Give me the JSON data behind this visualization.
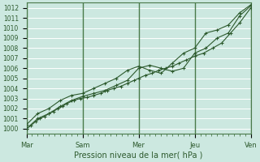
{
  "background_color": "#cce8e0",
  "plot_bg_color": "#cce8e0",
  "grid_color": "#ffffff",
  "vline_color": "#4a7a4a",
  "line_color": "#2d5a2d",
  "xlabel": "Pression niveau de la mer( hPa )",
  "ylim": [
    999.5,
    1012.5
  ],
  "yticks": [
    1000,
    1001,
    1002,
    1003,
    1004,
    1005,
    1006,
    1007,
    1008,
    1009,
    1010,
    1011,
    1012
  ],
  "xtick_labels": [
    "Mar",
    "Sam",
    "Mer",
    "Jeu",
    "Ven"
  ],
  "xtick_positions": [
    0,
    25,
    50,
    75,
    100
  ],
  "x_total": 100,
  "vline_positions": [
    0,
    25,
    50,
    75,
    100
  ],
  "line1_x": [
    0,
    2,
    4,
    6,
    8,
    10,
    12,
    14,
    16,
    18,
    21,
    24,
    27,
    30,
    33,
    36,
    39,
    42,
    45,
    48,
    50,
    53,
    56,
    59,
    62,
    65,
    68,
    71,
    75,
    79,
    83,
    87,
    91,
    95,
    100
  ],
  "line1_y": [
    1000.0,
    1000.3,
    1000.7,
    1001.0,
    1001.2,
    1001.5,
    1001.7,
    1002.0,
    1002.2,
    1002.5,
    1002.8,
    1003.0,
    1003.1,
    1003.3,
    1003.5,
    1003.8,
    1004.0,
    1004.2,
    1004.5,
    1004.8,
    1005.0,
    1005.3,
    1005.5,
    1005.8,
    1006.0,
    1006.2,
    1006.5,
    1006.8,
    1007.2,
    1007.5,
    1008.0,
    1008.5,
    1009.5,
    1010.5,
    1012.0
  ],
  "line2_x": [
    0,
    5,
    10,
    15,
    20,
    25,
    30,
    35,
    40,
    45,
    50,
    55,
    60,
    65,
    70,
    75,
    80,
    85,
    90,
    95,
    100
  ],
  "line2_y": [
    1000.0,
    1001.0,
    1001.5,
    1002.2,
    1002.8,
    1003.2,
    1003.5,
    1003.8,
    1004.3,
    1004.8,
    1006.0,
    1006.3,
    1006.0,
    1005.7,
    1006.0,
    1007.5,
    1008.0,
    1009.0,
    1009.5,
    1011.2,
    1012.2
  ],
  "line3_x": [
    0,
    5,
    10,
    15,
    20,
    25,
    30,
    35,
    40,
    45,
    50,
    55,
    60,
    65,
    70,
    75,
    80,
    85,
    90,
    95,
    100
  ],
  "line3_y": [
    1000.4,
    1001.5,
    1002.0,
    1002.8,
    1003.3,
    1003.5,
    1004.0,
    1004.5,
    1005.0,
    1005.8,
    1006.2,
    1005.8,
    1005.5,
    1006.5,
    1007.5,
    1008.0,
    1009.5,
    1009.8,
    1010.3,
    1011.5,
    1012.3
  ]
}
